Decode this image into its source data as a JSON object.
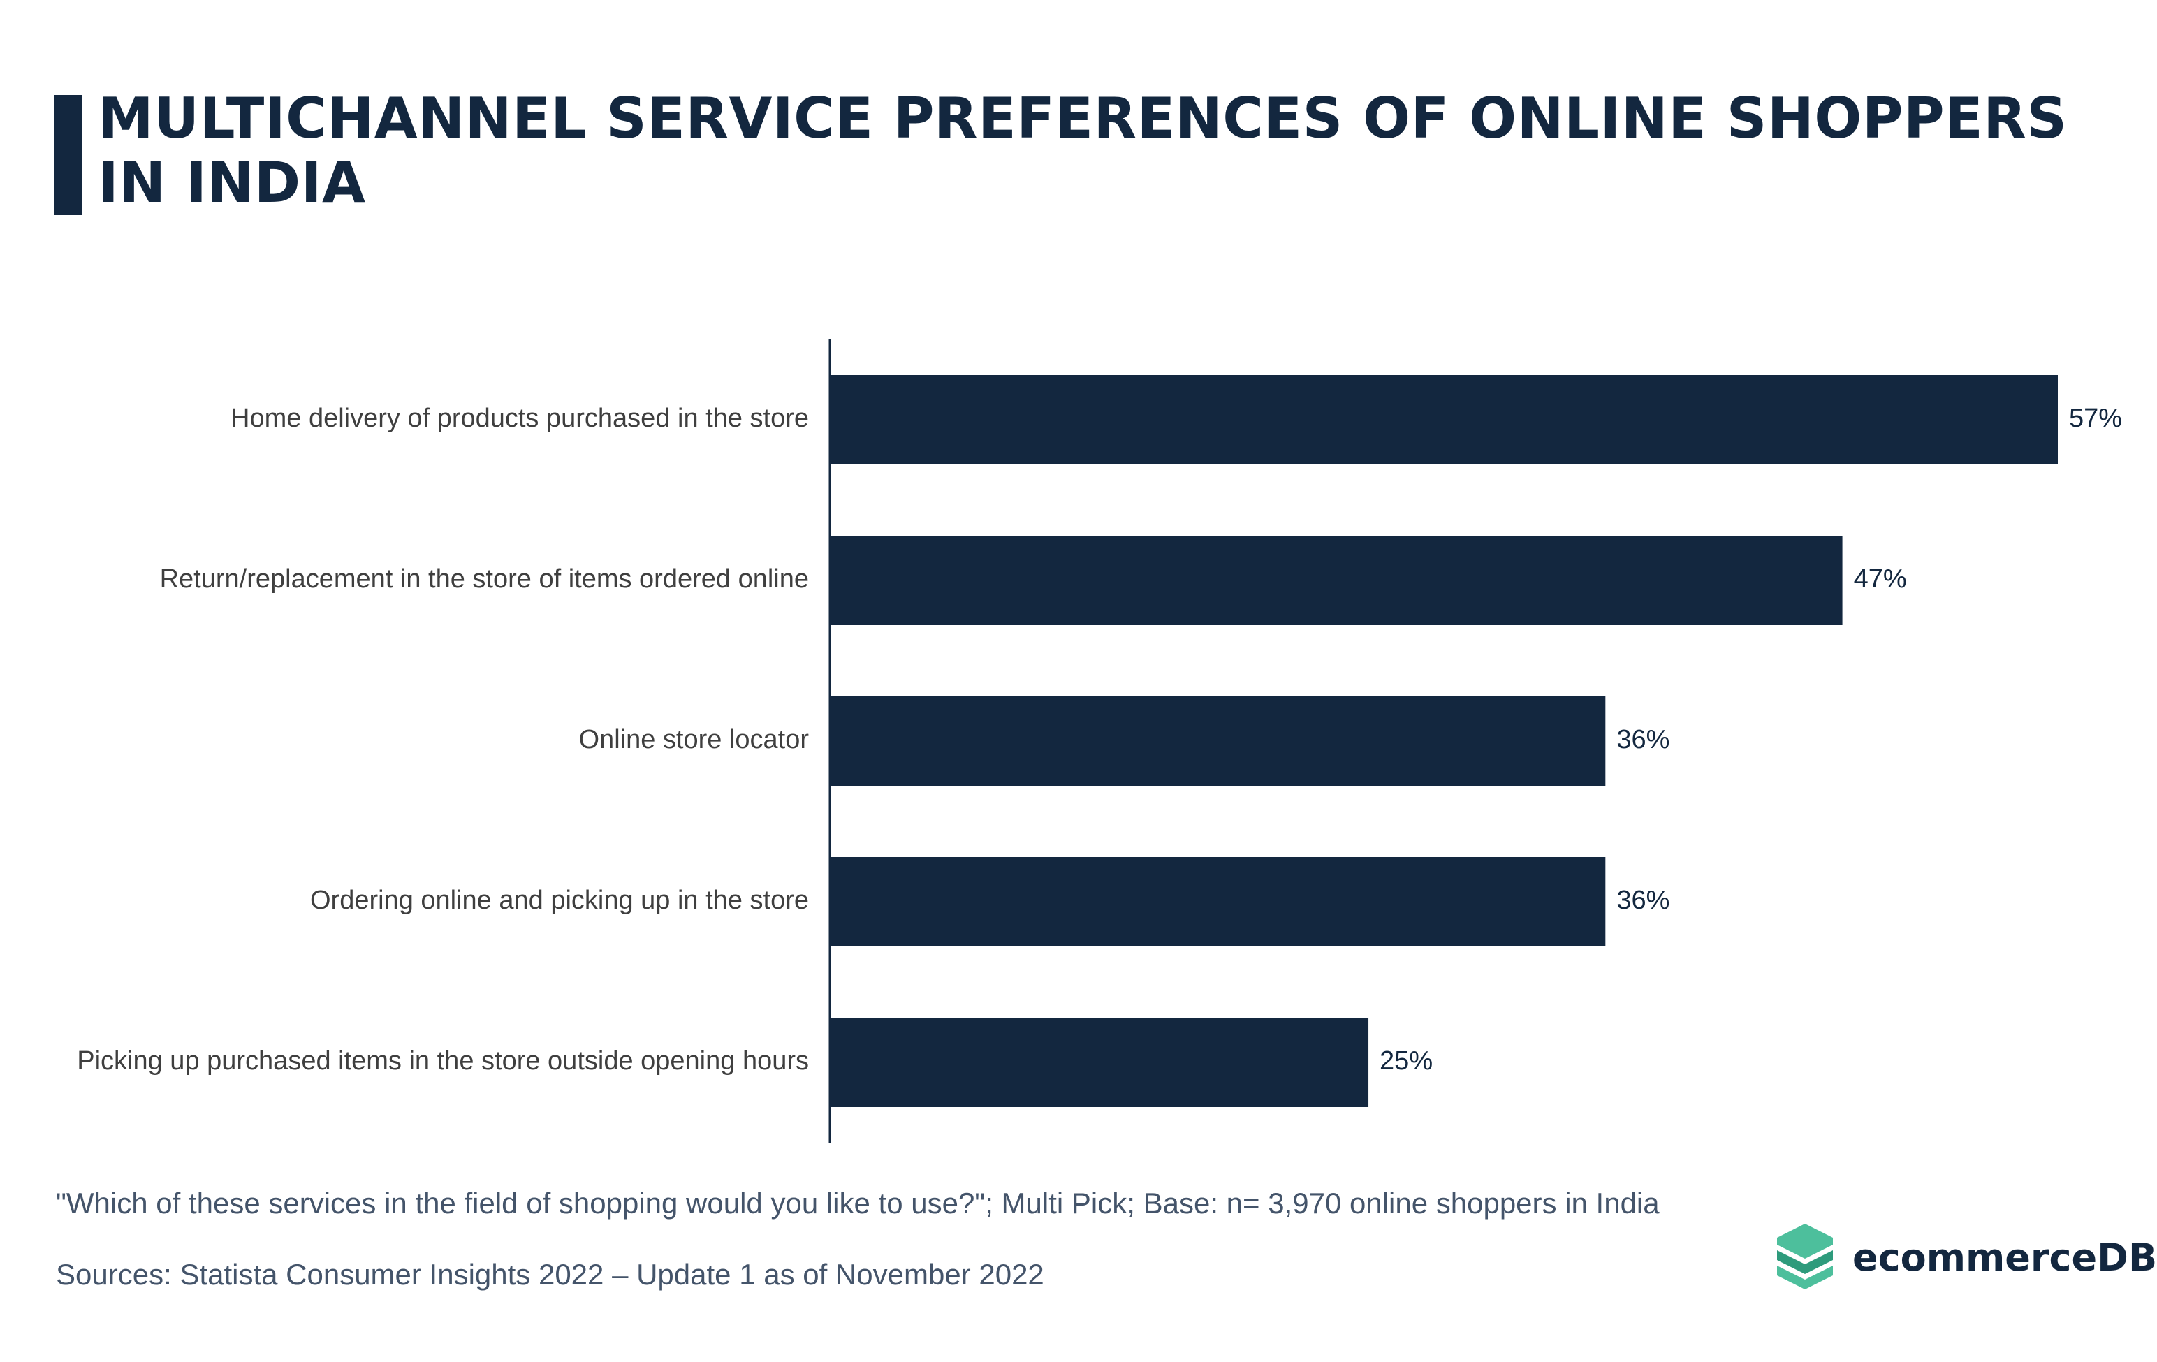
{
  "header": {
    "title": "MULTICHANNEL SERVICE PREFERENCES OF ONLINE SHOPPERS IN INDIA"
  },
  "colors": {
    "navy": "#13273f",
    "label_text": "#3f3f3f",
    "footnote_text": "#44546a",
    "logo_green_light": "#4dbf9c",
    "logo_green_dark": "#2e9b7c"
  },
  "chart_data": {
    "type": "bar",
    "orientation": "horizontal",
    "categories": [
      "Home delivery of products purchased in the store",
      "Return/replacement in the store of items ordered online",
      "Online store locator",
      "Ordering online and picking up in the store",
      "Picking up purchased items in the store outside opening hours"
    ],
    "values": [
      57,
      47,
      36,
      36,
      25
    ],
    "value_labels": [
      "57%",
      "47%",
      "36%",
      "36%",
      "25%"
    ],
    "unit": "%",
    "xlim": [
      0,
      57
    ],
    "grid": false,
    "legend": "none",
    "xaxis_visible": false
  },
  "footer": {
    "note": "\"Which of these services in the field of shopping would you like to use?\"; Multi Pick; Base: n= 3,970 online shoppers in India",
    "source": "Sources: Statista Consumer Insights 2022 – Update 1 as of November 2022"
  },
  "brand": {
    "name": "ecommerceDB",
    "icon": "stacked-layers-icon"
  }
}
